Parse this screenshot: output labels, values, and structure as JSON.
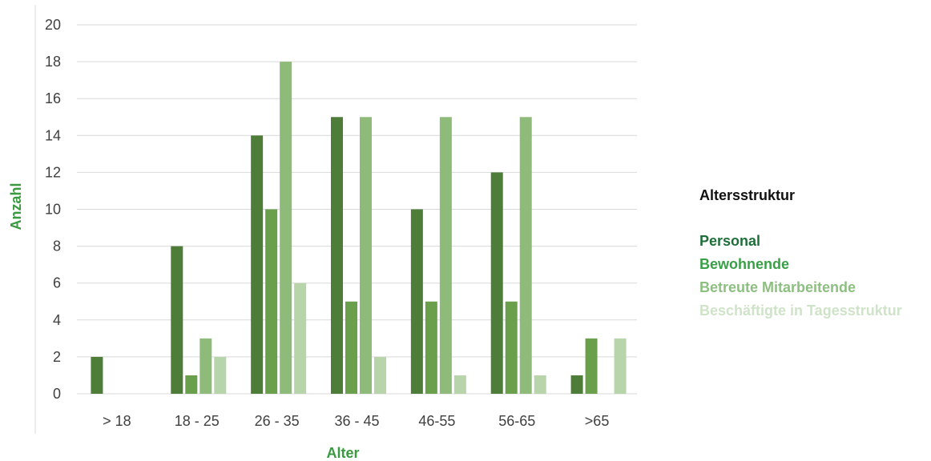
{
  "chart_data": {
    "type": "bar",
    "xlabel": "Alter",
    "ylabel": "Anzahl",
    "ylim": [
      0,
      20
    ],
    "yticks": [
      "0",
      "2",
      "4",
      "6",
      "8",
      "10",
      "12",
      "14",
      "16",
      "18",
      "20"
    ],
    "grid": true,
    "legend_position": "right",
    "categories": [
      "> 18",
      "18 - 25",
      "26 - 35",
      "36 - 45",
      "46-55",
      "56-65",
      ">65"
    ],
    "series": [
      {
        "name": "Personal",
        "color": "#4e7d3a",
        "values": [
          2,
          8,
          14,
          15,
          10,
          12,
          1
        ]
      },
      {
        "name": "Bewohnende",
        "color": "#6aa04c",
        "values": [
          0,
          1,
          10,
          5,
          5,
          5,
          3
        ]
      },
      {
        "name": "Betreute Mitarbeitende",
        "color": "#8fbb7a",
        "values": [
          0,
          3,
          18,
          15,
          15,
          15,
          0
        ]
      },
      {
        "name": "Beschäftigte in Tagesstruktur",
        "color": "#b8d4aa",
        "values": [
          0,
          2,
          6,
          2,
          1,
          1,
          3
        ]
      }
    ]
  },
  "legend": {
    "title": "Altersstruktur",
    "item_colors": [
      "#1e6e3a",
      "#3aa047",
      "#8cbf80",
      "#cfe3c8"
    ]
  }
}
